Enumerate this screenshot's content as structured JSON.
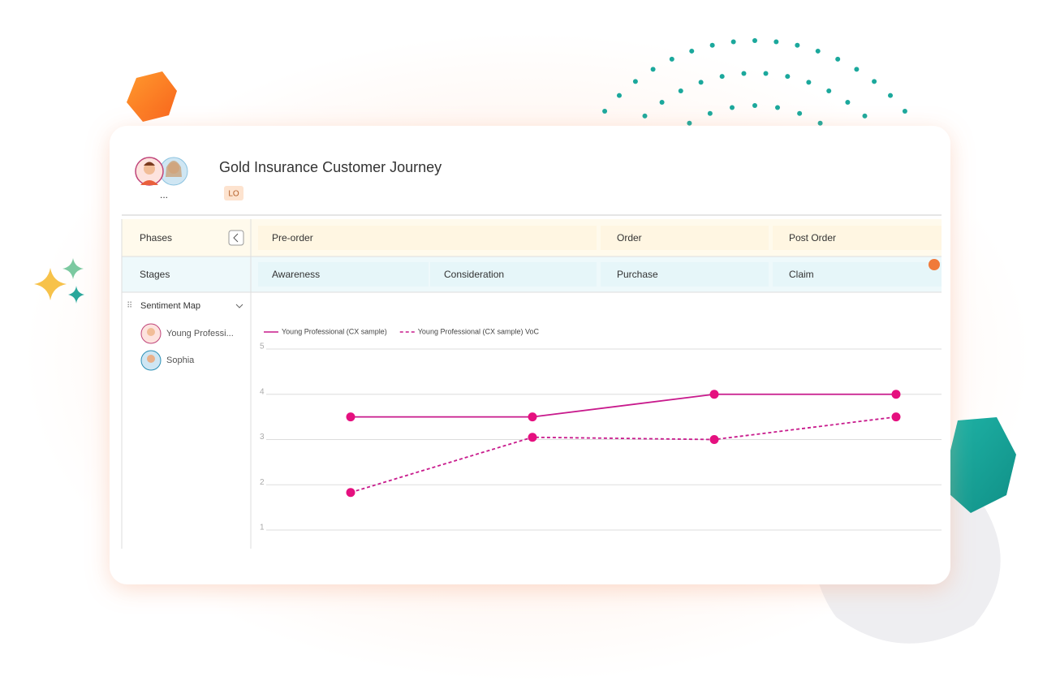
{
  "header": {
    "title": "Gold Insurance Customer Journey",
    "badge": "LO",
    "more": "..."
  },
  "table": {
    "phases_label": "Phases",
    "phases": [
      "Pre-order",
      "Order",
      "Post Order"
    ],
    "stages_label": "Stages",
    "stages": [
      "Awareness",
      "Consideration",
      "Purchase",
      "Claim"
    ]
  },
  "sidebar": {
    "title": "Sentiment Map",
    "personas": [
      "Young Professi...",
      "Sophia"
    ]
  },
  "chart_data": {
    "type": "line",
    "ylim": [
      1,
      5
    ],
    "yticks": [
      1,
      2,
      3,
      4,
      5
    ],
    "grid": true,
    "legend": "top-left",
    "series": [
      {
        "name": "Young Professional (CX sample)",
        "color": "#c81a8c",
        "marker_color": "#e5107f",
        "dash": false,
        "values": [
          3.5,
          3.5,
          4,
          4
        ]
      },
      {
        "name": "Young Professional (CX sample) VoC",
        "color": "#c81a8c",
        "marker_color": "#e5107f",
        "dash": true,
        "values": [
          1.83,
          3.05,
          3.0,
          3.5
        ]
      }
    ]
  }
}
